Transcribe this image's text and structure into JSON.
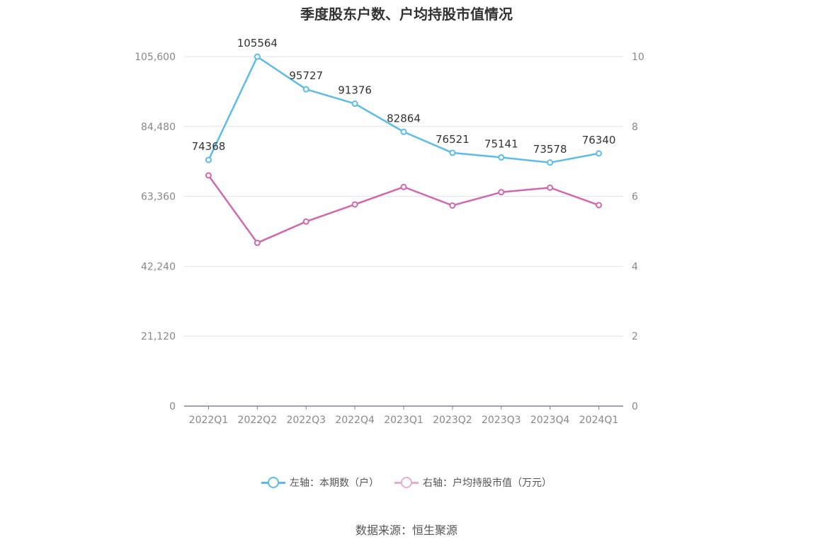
{
  "chart_data": {
    "type": "line",
    "title": "季度股东户数、户均持股市值情况",
    "categories": [
      "2022Q1",
      "2022Q2",
      "2022Q3",
      "2022Q4",
      "2023Q1",
      "2023Q2",
      "2023Q3",
      "2023Q4",
      "2024Q1"
    ],
    "series": [
      {
        "name": "左轴：本期数（户）",
        "axis": "left",
        "color": "#5bbcec",
        "values": [
          74368,
          105564,
          95727,
          91376,
          82864,
          76521,
          75141,
          73578,
          76340
        ],
        "show_labels": true
      },
      {
        "name": "右轴：户均持股市值（万元）",
        "axis": "right",
        "color": "#d267b0",
        "values": [
          6.6,
          4.67,
          5.28,
          5.77,
          6.27,
          5.74,
          6.12,
          6.25,
          5.75
        ],
        "show_labels": false
      }
    ],
    "left_axis": {
      "ylim": [
        0,
        105600
      ],
      "ticks": [
        0,
        21120,
        42240,
        63360,
        84480,
        105600
      ],
      "tick_labels": [
        "0",
        "21,120",
        "42,240",
        "63,360",
        "84,480",
        "105,600"
      ]
    },
    "right_axis": {
      "ylim": [
        0,
        10
      ],
      "ticks": [
        0,
        2,
        4,
        6,
        8,
        10
      ],
      "tick_labels": [
        "0",
        "2",
        "4",
        "6",
        "8",
        "10"
      ]
    },
    "grid": true,
    "legend_position": "bottom-center"
  },
  "legend": [
    {
      "label": "左轴：本期数（户）",
      "color": "#5bbcec"
    },
    {
      "label": "右轴：户均持股市值（万元）",
      "color": "#e8a9d4"
    }
  ],
  "source": "数据来源：恒生聚源"
}
